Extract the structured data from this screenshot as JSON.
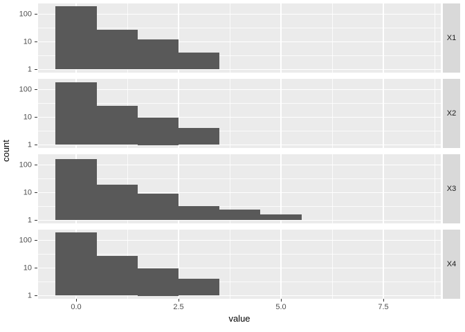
{
  "chart_data": {
    "type": "bar",
    "subtype": "faceted_histogram_log_y",
    "title": "",
    "xlabel": "value",
    "ylabel": "count",
    "x_ticks": [
      "0.0",
      "2.5",
      "5.0",
      "7.5"
    ],
    "x_tick_values": [
      0,
      2.5,
      5,
      7.5
    ],
    "x_minor_values": [
      1.25,
      3.75,
      6.25,
      8.75
    ],
    "xlim": [
      -0.93,
      8.9
    ],
    "y_scale": "log10",
    "y_ticks": [
      "100",
      "10",
      "1"
    ],
    "y_tick_values": [
      100,
      10,
      1
    ],
    "y_minor_log_values": [
      0.5,
      1.5,
      2.5
    ],
    "ylim_log": [
      -0.1125,
      2.3875
    ],
    "bin_start": -0.5,
    "bin_width": 1,
    "grid": true,
    "legend_position": "none",
    "facets": [
      {
        "label": "X1",
        "counts": [
          190,
          27,
          12,
          4
        ]
      },
      {
        "label": "X2",
        "counts": [
          180,
          26,
          10,
          4
        ]
      },
      {
        "label": "X3",
        "counts": [
          160,
          19,
          9,
          3.2,
          2.4,
          1.6
        ]
      },
      {
        "label": "X4",
        "counts": [
          190,
          28,
          10,
          4
        ]
      }
    ]
  },
  "style": {
    "bar_color": "#595959",
    "panel_bg": "#EBEBEB",
    "strip_bg": "#D9D9D9",
    "grid_major": "#FFFFFF",
    "grid_minor": "#FFFFFF",
    "axis_text_color": "#4D4D4D",
    "axis_title_color": "#000000",
    "strip_text_color": "#1A1A1A",
    "tick_mark_color": "#333333",
    "figure_bg": "#FFFFFF"
  }
}
